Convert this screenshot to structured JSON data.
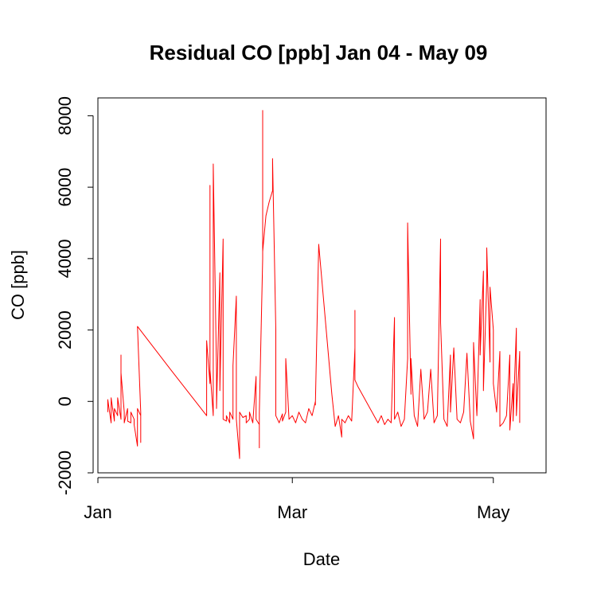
{
  "chart_data": {
    "type": "line",
    "title": "Residual CO [ppb] Jan 04 - May 09",
    "xlabel": "Date",
    "ylabel": "CO [ppb]",
    "xlim": [
      "2013-01-01",
      "2013-05-17"
    ],
    "ylim": [
      -2000,
      8500
    ],
    "x_ticks": [
      {
        "date": "2013-01-01",
        "label": "Jan"
      },
      {
        "date": "2013-03-01",
        "label": "Mar"
      },
      {
        "date": "2013-05-01",
        "label": "May"
      }
    ],
    "y_ticks": [
      {
        "value": -2000,
        "label": "-2000"
      },
      {
        "value": 0,
        "label": "0"
      },
      {
        "value": 2000,
        "label": "2000"
      },
      {
        "value": 4000,
        "label": "4000"
      },
      {
        "value": 6000,
        "label": "6000"
      },
      {
        "value": 8000,
        "label": "8000"
      }
    ],
    "grid": false,
    "line_color": "#ff0000",
    "series": [
      {
        "color": "#ff0000",
        "points": [
          [
            "2013-01-04",
            -300
          ],
          [
            "2013-01-04",
            50
          ],
          [
            "2013-01-05",
            -600
          ],
          [
            "2013-01-05",
            100
          ],
          [
            "2013-01-06",
            -550
          ],
          [
            "2013-01-06",
            -200
          ],
          [
            "2013-01-07",
            -400
          ],
          [
            "2013-01-07",
            100
          ],
          [
            "2013-01-08",
            -500
          ],
          [
            "2013-01-08",
            1300
          ],
          [
            "2013-01-08",
            800
          ],
          [
            "2013-01-09",
            -300
          ],
          [
            "2013-01-09",
            -600
          ],
          [
            "2013-01-10",
            -200
          ],
          [
            "2013-01-10",
            -550
          ],
          [
            "2013-01-11",
            -600
          ],
          [
            "2013-01-11",
            -300
          ],
          [
            "2013-01-12",
            -500
          ],
          [
            "2013-01-12",
            -650
          ],
          [
            "2013-01-13",
            -1250
          ],
          [
            "2013-01-13",
            -200
          ],
          [
            "2013-01-14",
            -400
          ],
          [
            "2013-01-14",
            -1150
          ],
          [
            "2013-01-14",
            -300
          ],
          [
            "2013-01-13",
            2100
          ],
          [
            "2013-01-23",
            900
          ],
          [
            "2013-02-03",
            -400
          ],
          [
            "2013-02-03",
            -200
          ],
          [
            "2013-02-03",
            1700
          ],
          [
            "2013-02-04",
            500
          ],
          [
            "2013-02-04",
            5300
          ],
          [
            "2013-02-04",
            6050
          ],
          [
            "2013-02-04",
            900
          ],
          [
            "2013-02-05",
            -400
          ],
          [
            "2013-02-05",
            3200
          ],
          [
            "2013-02-05",
            6650
          ],
          [
            "2013-02-06",
            800
          ],
          [
            "2013-02-06",
            -200
          ],
          [
            "2013-02-07",
            3600
          ],
          [
            "2013-02-07",
            2400
          ],
          [
            "2013-02-07",
            300
          ],
          [
            "2013-02-08",
            4550
          ],
          [
            "2013-02-08",
            -500
          ],
          [
            "2013-02-09",
            -550
          ],
          [
            "2013-02-09",
            -400
          ],
          [
            "2013-02-10",
            -600
          ],
          [
            "2013-02-10",
            -300
          ],
          [
            "2013-02-11",
            -500
          ],
          [
            "2013-02-11",
            1000
          ],
          [
            "2013-02-12",
            2950
          ],
          [
            "2013-02-12",
            200
          ],
          [
            "2013-02-12",
            -500
          ],
          [
            "2013-02-13",
            -1600
          ],
          [
            "2013-02-13",
            -300
          ],
          [
            "2013-02-14",
            -450
          ],
          [
            "2013-02-15",
            -400
          ],
          [
            "2013-02-15",
            -600
          ],
          [
            "2013-02-16",
            -500
          ],
          [
            "2013-02-16",
            -300
          ],
          [
            "2013-02-17",
            -600
          ],
          [
            "2013-02-18",
            700
          ],
          [
            "2013-02-18",
            -500
          ],
          [
            "2013-02-19",
            -650
          ],
          [
            "2013-02-19",
            -1300
          ],
          [
            "2013-02-19",
            -300
          ],
          [
            "2013-02-20",
            4000
          ],
          [
            "2013-02-20",
            8150
          ],
          [
            "2013-02-20",
            4200
          ],
          [
            "2013-02-21",
            5200
          ],
          [
            "2013-02-22",
            5600
          ],
          [
            "2013-02-23",
            5900
          ],
          [
            "2013-02-23",
            6800
          ],
          [
            "2013-02-24",
            2000
          ],
          [
            "2013-02-24",
            -400
          ],
          [
            "2013-02-25",
            -600
          ],
          [
            "2013-02-26",
            -350
          ],
          [
            "2013-02-26",
            -550
          ],
          [
            "2013-02-27",
            -300
          ],
          [
            "2013-02-27",
            1200
          ],
          [
            "2013-02-28",
            -500
          ],
          [
            "2013-03-01",
            -400
          ],
          [
            "2013-03-02",
            -600
          ],
          [
            "2013-03-03",
            -300
          ],
          [
            "2013-03-04",
            -500
          ],
          [
            "2013-03-05",
            -600
          ],
          [
            "2013-03-06",
            -200
          ],
          [
            "2013-03-07",
            -400
          ],
          [
            "2013-03-08",
            0
          ],
          [
            "2013-03-08",
            -100
          ],
          [
            "2013-03-09",
            4400
          ],
          [
            "2013-03-13",
            200
          ],
          [
            "2013-03-14",
            -700
          ],
          [
            "2013-03-15",
            -400
          ],
          [
            "2013-03-16",
            -1000
          ],
          [
            "2013-03-16",
            -500
          ],
          [
            "2013-03-17",
            -600
          ],
          [
            "2013-03-18",
            -400
          ],
          [
            "2013-03-19",
            -550
          ],
          [
            "2013-03-20",
            1500
          ],
          [
            "2013-03-20",
            2550
          ],
          [
            "2013-03-20",
            600
          ],
          [
            "2013-03-21",
            400
          ],
          [
            "2013-03-27",
            -600
          ],
          [
            "2013-03-28",
            -400
          ],
          [
            "2013-03-29",
            -650
          ],
          [
            "2013-03-30",
            -500
          ],
          [
            "2013-03-31",
            -600
          ],
          [
            "2013-04-01",
            2350
          ],
          [
            "2013-04-01",
            -500
          ],
          [
            "2013-04-02",
            -300
          ],
          [
            "2013-04-03",
            -700
          ],
          [
            "2013-04-04",
            -500
          ],
          [
            "2013-04-05",
            1200
          ],
          [
            "2013-04-05",
            5000
          ],
          [
            "2013-04-06",
            200
          ],
          [
            "2013-04-06",
            1200
          ],
          [
            "2013-04-07",
            -400
          ],
          [
            "2013-04-08",
            -700
          ],
          [
            "2013-04-09",
            900
          ],
          [
            "2013-04-10",
            -500
          ],
          [
            "2013-04-11",
            -300
          ],
          [
            "2013-04-12",
            900
          ],
          [
            "2013-04-13",
            -600
          ],
          [
            "2013-04-14",
            -400
          ],
          [
            "2013-04-15",
            4550
          ],
          [
            "2013-04-15",
            2200
          ],
          [
            "2013-04-16",
            -500
          ],
          [
            "2013-04-17",
            -700
          ],
          [
            "2013-04-18",
            1300
          ],
          [
            "2013-04-18",
            -300
          ],
          [
            "2013-04-19",
            1500
          ],
          [
            "2013-04-20",
            -500
          ],
          [
            "2013-04-21",
            -600
          ],
          [
            "2013-04-22",
            -300
          ],
          [
            "2013-04-23",
            1350
          ],
          [
            "2013-04-24",
            -550
          ],
          [
            "2013-04-25",
            -1050
          ],
          [
            "2013-04-25",
            1650
          ],
          [
            "2013-04-26",
            -400
          ],
          [
            "2013-04-27",
            2850
          ],
          [
            "2013-04-27",
            1300
          ],
          [
            "2013-04-28",
            3650
          ],
          [
            "2013-04-28",
            300
          ],
          [
            "2013-04-29",
            3350
          ],
          [
            "2013-04-29",
            4300
          ],
          [
            "2013-04-30",
            1100
          ],
          [
            "2013-04-30",
            3200
          ],
          [
            "2013-05-01",
            2000
          ],
          [
            "2013-05-01",
            500
          ],
          [
            "2013-05-02",
            -300
          ],
          [
            "2013-05-03",
            1400
          ],
          [
            "2013-05-03",
            -700
          ],
          [
            "2013-05-04",
            -600
          ],
          [
            "2013-05-05",
            -400
          ],
          [
            "2013-05-06",
            1300
          ],
          [
            "2013-05-06",
            -800
          ],
          [
            "2013-05-07",
            500
          ],
          [
            "2013-05-07",
            -550
          ],
          [
            "2013-05-08",
            2050
          ],
          [
            "2013-05-08",
            -400
          ],
          [
            "2013-05-09",
            1400
          ],
          [
            "2013-05-09",
            -600
          ]
        ]
      }
    ]
  }
}
